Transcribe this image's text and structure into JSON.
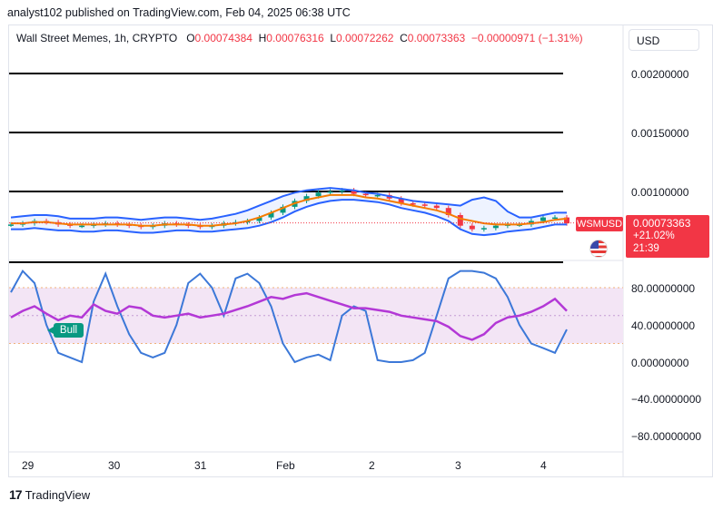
{
  "header": {
    "published": "analyst102 published on TradingView.com, Feb 04, 2025 06:38 UTC"
  },
  "legend": {
    "symbol": "Wall Street Memes, 1h, CRYPTO",
    "open_key": "O",
    "open": "0.00074384",
    "high_key": "H",
    "high": "0.00076316",
    "low_key": "L",
    "low": "0.00072262",
    "close_key": "C",
    "close": "0.00073363",
    "change": "−0.00000971 (−1.31%)"
  },
  "currency_button": "USD",
  "price_axis": [
    "0.00200000",
    "0.00150000",
    "0.00100000"
  ],
  "rsi_axis": [
    "80.00000000",
    "40.00000000",
    "0.00000000",
    "−40.00000000",
    "−80.00000000"
  ],
  "time_axis": [
    "29",
    "30",
    "31",
    "Feb",
    "2",
    "3",
    "4"
  ],
  "ticker_tag": {
    "symbol": "WSMUSD",
    "price": "0.00073363",
    "pct": "+21.02%",
    "countdown": "21:39"
  },
  "bull_label": "Bull",
  "footer": {
    "brand": "TradingView",
    "logo": "17"
  },
  "colors": {
    "up": "#089981",
    "down": "#f23645",
    "bb": "#2962ff",
    "ma": "#f57c00",
    "rsi": "#b338d6",
    "stoch": "#3c78d8",
    "band": "#f3e5f5"
  },
  "icons": [
    "us-flag-icon",
    "tradingview-logo-icon"
  ],
  "chart_data": [
    {
      "type": "line",
      "panel": "price",
      "ylim": [
        0.0004,
        0.0023
      ],
      "x_ticks": [
        "29",
        "30",
        "31",
        "Feb",
        "2",
        "3",
        "4"
      ],
      "horizontal_levels": [
        0.002,
        0.0015,
        0.001,
        0.0004
      ],
      "close": [
        0.00072,
        0.00073,
        0.00075,
        0.00074,
        0.00072,
        0.00071,
        0.00071,
        0.00072,
        0.00073,
        0.00072,
        0.00071,
        0.0007,
        0.00071,
        0.00073,
        0.00072,
        0.00071,
        0.0007,
        0.00071,
        0.00073,
        0.00074,
        0.00075,
        0.00078,
        0.00082,
        0.00087,
        0.00092,
        0.00096,
        0.00099,
        0.001,
        0.00101,
        0.00098,
        0.00097,
        0.00097,
        0.00094,
        0.0009,
        0.00089,
        0.00088,
        0.00086,
        0.0008,
        0.00071,
        0.00068,
        0.00069,
        0.00071,
        0.00072,
        0.00072,
        0.00075,
        0.00078,
        0.00078,
        0.00073
      ],
      "bb_upper": [
        0.00078,
        0.00079,
        0.0008,
        0.0008,
        0.00079,
        0.00077,
        0.00077,
        0.00077,
        0.00078,
        0.00078,
        0.00077,
        0.00076,
        0.00077,
        0.00078,
        0.00078,
        0.00077,
        0.00076,
        0.00077,
        0.00079,
        0.00081,
        0.00084,
        0.00088,
        0.00092,
        0.00096,
        0.00099,
        0.00101,
        0.00102,
        0.00103,
        0.00102,
        0.00101,
        0.00099,
        0.00098,
        0.00096,
        0.00094,
        0.00092,
        0.00091,
        0.0009,
        0.00089,
        0.00088,
        0.00093,
        0.00095,
        0.00092,
        0.00083,
        0.00078,
        0.00078,
        0.0008,
        0.00082,
        0.00082
      ],
      "bb_lower": [
        0.00068,
        0.00068,
        0.00069,
        0.00068,
        0.00067,
        0.00067,
        0.00066,
        0.00066,
        0.00067,
        0.00067,
        0.00066,
        0.00065,
        0.00065,
        0.00066,
        0.00067,
        0.00067,
        0.00066,
        0.00066,
        0.00067,
        0.00068,
        0.00069,
        0.00071,
        0.00074,
        0.00078,
        0.00083,
        0.00087,
        0.0009,
        0.00092,
        0.00093,
        0.00093,
        0.00092,
        0.00091,
        0.00089,
        0.00086,
        0.00084,
        0.00082,
        0.00079,
        0.00075,
        0.00068,
        0.00064,
        0.00063,
        0.00064,
        0.00066,
        0.00067,
        0.00068,
        0.0007,
        0.00072,
        0.00072
      ],
      "ma": [
        0.00073,
        0.00073,
        0.00074,
        0.00074,
        0.00073,
        0.00072,
        0.00072,
        0.00072,
        0.00072,
        0.00072,
        0.00072,
        0.00071,
        0.00071,
        0.00072,
        0.00072,
        0.00072,
        0.00071,
        0.00071,
        0.00072,
        0.00073,
        0.00075,
        0.00078,
        0.00082,
        0.00086,
        0.0009,
        0.00093,
        0.00095,
        0.00097,
        0.00097,
        0.00097,
        0.00095,
        0.00094,
        0.00092,
        0.0009,
        0.00088,
        0.00086,
        0.00084,
        0.00081,
        0.00077,
        0.00075,
        0.00073,
        0.00072,
        0.00072,
        0.00072,
        0.00073,
        0.00074,
        0.00076,
        0.00077
      ]
    },
    {
      "type": "line",
      "panel": "oscillator",
      "ylim": [
        -100,
        100
      ],
      "bands": [
        80,
        20
      ],
      "midline": 50,
      "rsi": [
        48,
        55,
        60,
        52,
        45,
        50,
        48,
        62,
        55,
        52,
        60,
        58,
        50,
        48,
        50,
        52,
        48,
        50,
        52,
        56,
        60,
        65,
        70,
        68,
        72,
        74,
        70,
        66,
        62,
        58,
        58,
        56,
        54,
        50,
        48,
        46,
        44,
        38,
        28,
        24,
        30,
        42,
        48,
        50,
        54,
        60,
        68,
        55
      ],
      "stoch": [
        75,
        98,
        85,
        40,
        10,
        5,
        0,
        65,
        95,
        60,
        30,
        10,
        5,
        10,
        40,
        85,
        95,
        80,
        50,
        90,
        95,
        85,
        60,
        20,
        0,
        5,
        8,
        2,
        50,
        60,
        55,
        2,
        0,
        0,
        2,
        10,
        50,
        90,
        98,
        98,
        96,
        90,
        70,
        40,
        20,
        15,
        10,
        35
      ]
    }
  ]
}
